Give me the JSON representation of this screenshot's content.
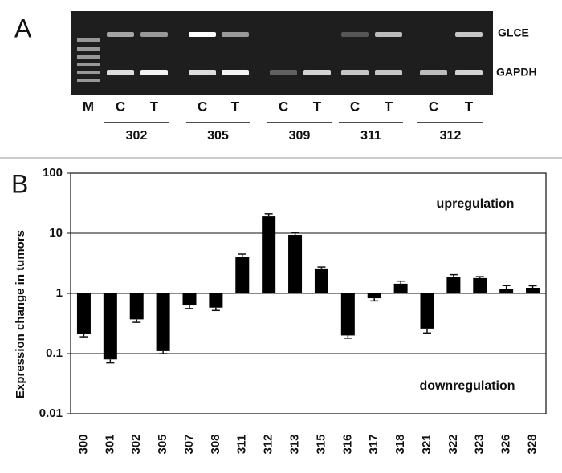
{
  "panel_a": {
    "letter": "A",
    "bands": [
      "GLCE",
      "GAPDH"
    ],
    "lanes": [
      "M",
      "C",
      "T",
      "C",
      "T",
      "C",
      "T",
      "C",
      "T",
      "C",
      "T"
    ],
    "groups": [
      "302",
      "305",
      "309",
      "311",
      "312"
    ]
  },
  "chart_data": {
    "type": "bar",
    "panel_letter": "B",
    "ylabel": "Expression change in tumors",
    "log_scale": true,
    "color": "#000000",
    "categories": [
      "300",
      "301",
      "302",
      "305",
      "307",
      "308",
      "311",
      "312",
      "313",
      "315",
      "316",
      "317",
      "318",
      "321",
      "322",
      "323",
      "326",
      "328"
    ],
    "values": [
      0.21,
      0.08,
      0.37,
      0.11,
      0.63,
      0.58,
      4.1,
      19,
      9.4,
      2.6,
      0.2,
      0.83,
      1.45,
      0.26,
      1.85,
      1.8,
      1.2,
      1.24
    ],
    "errors": [
      0.02,
      0.01,
      0.04,
      0.01,
      0.07,
      0.06,
      0.4,
      2,
      0.8,
      0.15,
      0.02,
      0.08,
      0.15,
      0.04,
      0.2,
      0.1,
      0.15,
      0.1
    ],
    "ylim": [
      0.01,
      100
    ],
    "yticks": [
      0.01,
      0.1,
      1,
      10,
      100
    ],
    "grid": true,
    "annotations": [
      "upregulation",
      "downregulation"
    ]
  }
}
